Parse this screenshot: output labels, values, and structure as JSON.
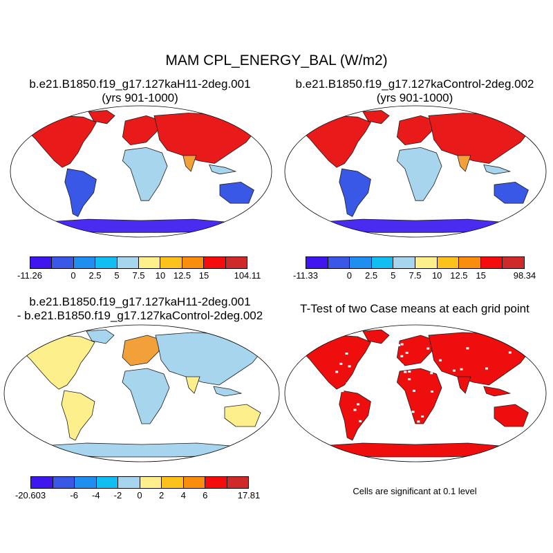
{
  "title": "MAM CPL_ENERGY_BAL (W/m2)",
  "colors": {
    "legend": [
      "#3f16ee",
      "#3a58e6",
      "#1e8ff0",
      "#12bdf2",
      "#a7d5ee",
      "#fdf08c",
      "#fbc21c",
      "#f98d0d",
      "#f50d0d",
      "#cf2a2a"
    ],
    "land_north": "#e81a1a",
    "land_north2": "#f2a13a",
    "land_mid": "#a7d5ee",
    "land_south": "#3a58e6",
    "antarctica": "#4a2cf0",
    "diff_land": "#fdf08c",
    "diff_light": "#a7d5ee",
    "ttest": "#ee0e0e"
  },
  "panels": [
    {
      "id": "case1",
      "title_line1": "b.e21.B1850.f19_g17.127kaH11-2deg.001",
      "title_line2": "(yrs 901-1000)",
      "colorbar_labels": [
        "-11.26",
        "0",
        "2.5",
        "5",
        "7.5",
        "10",
        "12.5",
        "15",
        "104.11"
      ]
    },
    {
      "id": "case2",
      "title_line1": "b.e21.B1850.f19_g17.127kaControl-2deg.002",
      "title_line2": "(yrs 901-1000)",
      "colorbar_labels": [
        "-11.33",
        "0",
        "2.5",
        "5",
        "7.5",
        "10",
        "12.5",
        "15",
        "98.34"
      ]
    },
    {
      "id": "difference",
      "title_line1": "b.e21.B1850.f19_g17.127kaH11-2deg.001",
      "title_line2": "- b.e21.B1850.f19_g17.127kaControl-2deg.002",
      "colorbar_labels": [
        "-20.603",
        "-6",
        "-4",
        "-2",
        "0",
        "2",
        "4",
        "6",
        "17.81"
      ]
    },
    {
      "id": "ttest",
      "title_line1": "T-Test of two Case means at each grid point",
      "note": "Cells are significant at 0.1 level"
    }
  ]
}
